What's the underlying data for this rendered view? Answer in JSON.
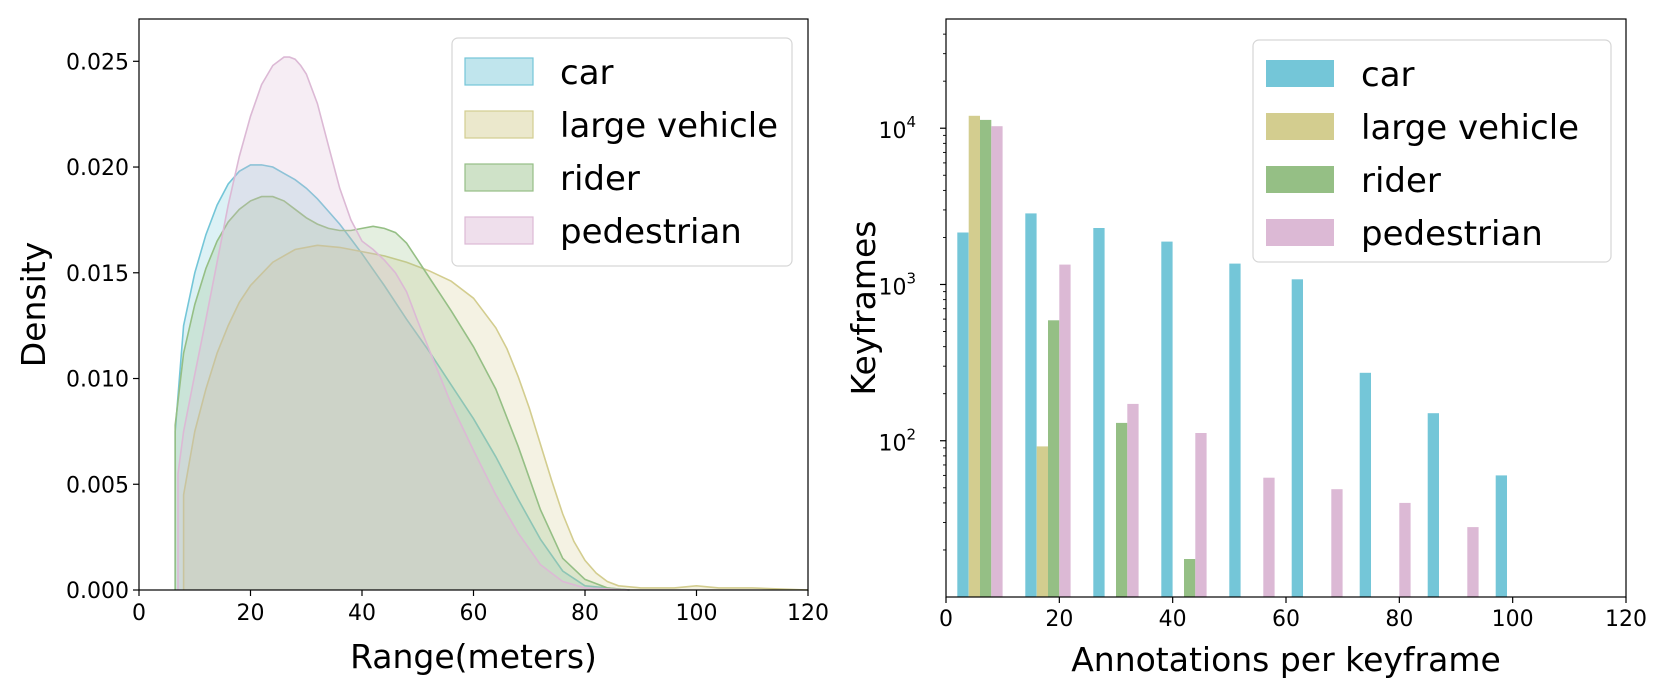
{
  "colors": {
    "car": "#74c6d8",
    "large_vehicle": "#d3cd8f",
    "rider": "#95bf85",
    "pedestrian": "#dcb9d5"
  },
  "chart_data": [
    {
      "type": "area",
      "title": "",
      "xlabel": "Range(meters)",
      "ylabel": "Density",
      "xlim": [
        0,
        120
      ],
      "ylim": [
        0,
        0.027
      ],
      "xticks": [
        "0",
        "20",
        "40",
        "60",
        "80",
        "100",
        "120"
      ],
      "yticks": [
        "0.000",
        "0.005",
        "0.010",
        "0.015",
        "0.020",
        "0.025"
      ],
      "legend_position": "top-right",
      "series": [
        {
          "name": "car",
          "key": "car",
          "x": [
            6.5,
            6.5,
            8,
            10,
            12,
            14,
            16,
            18,
            20,
            22,
            24,
            26,
            28,
            30,
            32,
            34,
            36,
            38,
            40,
            44,
            48,
            52,
            56,
            60,
            64,
            68,
            72,
            76,
            80,
            84,
            88
          ],
          "y": [
            0,
            0.0075,
            0.0125,
            0.015,
            0.0168,
            0.0182,
            0.0192,
            0.0198,
            0.0201,
            0.0201,
            0.02,
            0.0197,
            0.0194,
            0.019,
            0.0185,
            0.0179,
            0.0173,
            0.0166,
            0.0159,
            0.0144,
            0.0128,
            0.0113,
            0.0097,
            0.0081,
            0.0063,
            0.0043,
            0.0024,
            0.0009,
            0.0002,
            0.0001,
            0
          ]
        },
        {
          "name": "large vehicle",
          "key": "large_vehicle",
          "x": [
            8,
            8,
            10,
            12,
            14,
            16,
            18,
            20,
            24,
            28,
            32,
            36,
            40,
            44,
            48,
            52,
            56,
            60,
            64,
            66,
            68,
            70,
            72,
            74,
            76,
            78,
            80,
            82,
            84,
            86,
            90,
            96,
            100,
            104,
            110,
            120
          ],
          "y": [
            0,
            0.0045,
            0.0075,
            0.0095,
            0.0112,
            0.0125,
            0.0136,
            0.0144,
            0.0155,
            0.0161,
            0.0163,
            0.0162,
            0.016,
            0.0158,
            0.0155,
            0.0151,
            0.0146,
            0.0138,
            0.0124,
            0.0114,
            0.0101,
            0.0086,
            0.0069,
            0.0052,
            0.0036,
            0.0023,
            0.0014,
            0.0008,
            0.0004,
            0.0002,
            0.0001,
            0.0001,
            0.0002,
            0.0001,
            0.0001,
            0
          ]
        },
        {
          "name": "rider",
          "key": "rider",
          "x": [
            6.5,
            6.5,
            8,
            10,
            12,
            14,
            16,
            18,
            20,
            22,
            24,
            26,
            28,
            30,
            32,
            34,
            36,
            38,
            40,
            42,
            44,
            46,
            48,
            50,
            52,
            54,
            56,
            60,
            64,
            68,
            72,
            76,
            80,
            84,
            88
          ],
          "y": [
            0,
            0.0078,
            0.0112,
            0.0135,
            0.0152,
            0.0165,
            0.0174,
            0.018,
            0.0184,
            0.0186,
            0.0186,
            0.0184,
            0.018,
            0.0176,
            0.0173,
            0.0171,
            0.017,
            0.017,
            0.0171,
            0.0172,
            0.0171,
            0.0169,
            0.0164,
            0.0156,
            0.0148,
            0.014,
            0.0132,
            0.0115,
            0.0095,
            0.0068,
            0.0038,
            0.0015,
            0.0005,
            0.0001,
            0
          ]
        },
        {
          "name": "pedestrian",
          "key": "pedestrian",
          "x": [
            7,
            7,
            8,
            10,
            12,
            14,
            16,
            18,
            20,
            22,
            24,
            26,
            27,
            28,
            29,
            30,
            32,
            34,
            36,
            38,
            40,
            42,
            44,
            46,
            48,
            50,
            52,
            56,
            60,
            64,
            68,
            72,
            76,
            80,
            84,
            88
          ],
          "y": [
            0,
            0.0055,
            0.0075,
            0.0102,
            0.0128,
            0.0155,
            0.0182,
            0.0205,
            0.0224,
            0.0239,
            0.0248,
            0.0252,
            0.0252,
            0.0251,
            0.0248,
            0.0244,
            0.023,
            0.021,
            0.019,
            0.0175,
            0.0165,
            0.0161,
            0.0156,
            0.015,
            0.0141,
            0.0127,
            0.0114,
            0.0088,
            0.0066,
            0.0045,
            0.0027,
            0.0012,
            0.0004,
            0.0001,
            5e-05,
            0
          ]
        }
      ]
    },
    {
      "type": "bar",
      "title": "",
      "xlabel": "Annotations per keyframe",
      "ylabel": "Keyframes",
      "yscale": "log",
      "xlim": [
        0,
        120
      ],
      "ylim": [
        10,
        50000
      ],
      "xticks": [
        "0",
        "20",
        "40",
        "60",
        "80",
        "100",
        "120"
      ],
      "yticks": [
        {
          "base": "10",
          "exp": "2",
          "value": 100
        },
        {
          "base": "10",
          "exp": "3",
          "value": 1000
        },
        {
          "base": "10",
          "exp": "4",
          "value": 10000
        }
      ],
      "legend_position": "top-right",
      "bar_width": 2,
      "series": [
        {
          "name": "car",
          "key": "car",
          "x": [
            3,
            15,
            27,
            39,
            51,
            62,
            74,
            86,
            98
          ],
          "values": [
            2150,
            2850,
            2300,
            1880,
            1360,
            1080,
            272,
            150,
            60
          ]
        },
        {
          "name": "large vehicle",
          "key": "large_vehicle",
          "x": [
            5,
            17
          ],
          "values": [
            12000,
            92
          ]
        },
        {
          "name": "rider",
          "key": "rider",
          "x": [
            7,
            19,
            31,
            43
          ],
          "values": [
            11300,
            590,
            130,
            17.5
          ]
        },
        {
          "name": "pedestrian",
          "key": "pedestrian",
          "x": [
            9,
            21,
            33,
            45,
            57,
            69,
            81,
            93
          ],
          "values": [
            10300,
            1340,
            172,
            112,
            58,
            49,
            40,
            28
          ]
        }
      ]
    }
  ]
}
